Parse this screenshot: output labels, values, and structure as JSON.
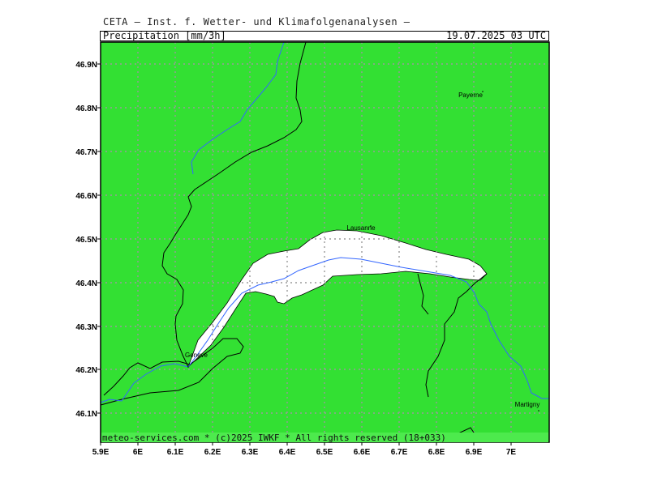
{
  "header": {
    "institution": "CETA — Inst. f. Wetter- und Klimafolgenanalysen —",
    "parameter": "Precipitation_[mm/3h]",
    "datetime": "19.07.2025 03 UTC"
  },
  "map": {
    "fill_color": "#33e033",
    "lake_color": "#ffffff",
    "river_color": "#3366ff",
    "border_color": "#000000",
    "lat_labels": [
      "46.9N",
      "46.8N",
      "46.7N",
      "46.6N",
      "46.5N",
      "46.4N",
      "46.3N",
      "46.2N",
      "46.1N"
    ],
    "lon_labels": [
      "5.9E",
      "6E",
      "6.1E",
      "6.2E",
      "6.3E",
      "6.4E",
      "6.5E",
      "6.6E",
      "6.7E",
      "6.8E",
      "6.9E",
      "7E"
    ],
    "cities": [
      {
        "name": "Payerne"
      },
      {
        "name": "Lausanne"
      },
      {
        "name": "Geneve"
      },
      {
        "name": "Martigny"
      }
    ]
  },
  "footer": {
    "credit": "meteo-services.com * (c)2025 IWKF * All rights reserved (18+033)"
  }
}
